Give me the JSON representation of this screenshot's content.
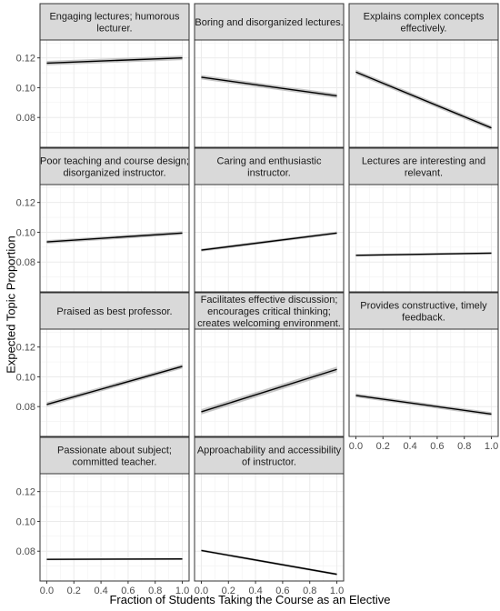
{
  "chart_data": {
    "type": "line",
    "title": "",
    "xlabel": "Fraction of Students Taking the Course as an Elective",
    "ylabel": "Expected Topic Proportion",
    "xlim": [
      -0.05,
      1.05
    ],
    "ylim": [
      0.06,
      0.132
    ],
    "x_ticks": [
      0.0,
      0.2,
      0.4,
      0.6,
      0.8,
      1.0
    ],
    "x_tick_labels": [
      "0.0",
      "0.2",
      "0.4",
      "0.6",
      "0.8",
      "1.0"
    ],
    "y_ticks": [
      0.08,
      0.1,
      0.12
    ],
    "y_tick_labels": [
      "0.08",
      "0.10",
      "0.12"
    ],
    "grid": true,
    "confidence_band": true,
    "colors": {
      "line": "#000000",
      "band": "#bdbdbd",
      "strip": "#d9d9d9",
      "grid": "#ebebeb"
    },
    "panels": [
      {
        "label_lines": [
          "Engaging lectures; humorous",
          "lecturer."
        ],
        "x": [
          0,
          1
        ],
        "y": [
          0.1165,
          0.12
        ],
        "band": 0.0015
      },
      {
        "label_lines": [
          "Boring and disorganized lectures."
        ],
        "x": [
          0,
          1
        ],
        "y": [
          0.107,
          0.0945
        ],
        "band": 0.0015
      },
      {
        "label_lines": [
          "Explains complex concepts",
          "effectively."
        ],
        "x": [
          0,
          1
        ],
        "y": [
          0.1105,
          0.073
        ],
        "band": 0.0015
      },
      {
        "label_lines": [
          "Poor teaching and course design;",
          "disorganized instructor."
        ],
        "x": [
          0,
          1
        ],
        "y": [
          0.0935,
          0.0995
        ],
        "band": 0.0012
      },
      {
        "label_lines": [
          "Caring and enthusiastic",
          "instructor."
        ],
        "x": [
          0,
          1
        ],
        "y": [
          0.088,
          0.0995
        ],
        "band": 0.001
      },
      {
        "label_lines": [
          "Lectures are interesting and",
          "relevant."
        ],
        "x": [
          0,
          1
        ],
        "y": [
          0.0845,
          0.086
        ],
        "band": 0.0008
      },
      {
        "label_lines": [
          "Praised as best professor."
        ],
        "x": [
          0,
          1
        ],
        "y": [
          0.0815,
          0.107
        ],
        "band": 0.0015
      },
      {
        "label_lines": [
          "Facilitates effective discussion;",
          "encourages critical thinking;",
          "creates welcoming environment."
        ],
        "x": [
          0,
          1
        ],
        "y": [
          0.0765,
          0.105
        ],
        "band": 0.0018
      },
      {
        "label_lines": [
          "Provides constructive, timely",
          "feedback."
        ],
        "x": [
          0,
          1
        ],
        "y": [
          0.0875,
          0.075
        ],
        "band": 0.0013
      },
      {
        "label_lines": [
          "Passionate about subject;",
          "committed teacher."
        ],
        "x": [
          0,
          1
        ],
        "y": [
          0.0745,
          0.0748
        ],
        "band": 0.0006
      },
      {
        "label_lines": [
          "Approachability and accessibility",
          "of instructor."
        ],
        "x": [
          0,
          1
        ],
        "y": [
          0.0805,
          0.0645
        ],
        "band": 0.0008
      }
    ]
  }
}
